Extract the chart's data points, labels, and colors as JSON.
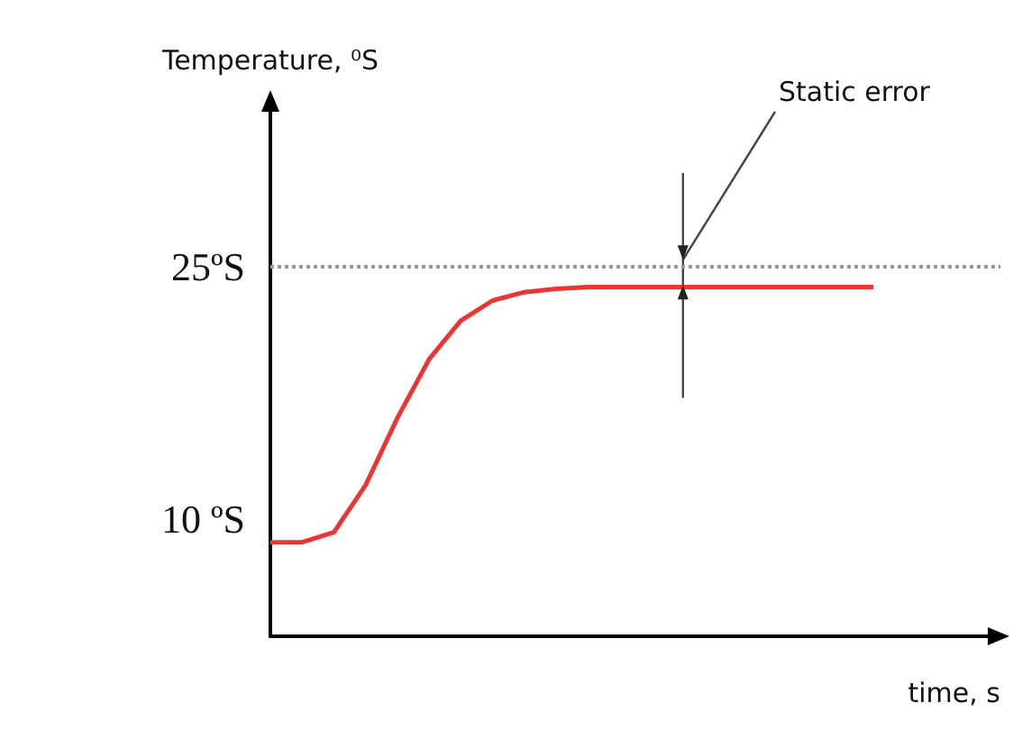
{
  "chart_data": {
    "type": "line",
    "ylabel": "Temperature, ⁰S",
    "xlabel": "time, s",
    "categories": [
      null,
      null,
      null,
      null,
      null,
      null,
      null,
      null,
      null,
      null,
      null,
      null,
      null,
      null,
      null,
      null,
      null,
      null,
      null,
      null,
      null,
      null,
      null,
      null
    ],
    "series": [
      {
        "color": "#ee3333",
        "values": [
          8.6,
          8.6,
          9.2,
          12,
          16,
          19.5,
          21.8,
          23,
          23.5,
          23.7,
          23.8,
          23.8,
          23.8,
          23.8,
          23.8,
          23.8,
          23.8,
          23.8,
          23.8,
          23.8,
          null,
          null,
          null,
          null
        ],
        "errors": [
          null,
          null,
          null,
          null,
          null,
          null,
          null,
          null,
          null,
          null,
          null,
          null,
          null,
          [
            17.2,
            30.6
          ],
          null,
          null,
          null,
          null,
          null,
          null,
          null,
          null,
          null,
          null
        ]
      }
    ],
    "ylim": [
      3,
      35
    ],
    "yticks": [
      {
        "value": 25,
        "label": "25ºS"
      },
      {
        "value": 10,
        "label": "10 ºS"
      }
    ],
    "tick_labels": "y",
    "grid": false,
    "marker": "none",
    "line_style": "solid",
    "ref_lines": [
      {
        "axis": "y",
        "value": 25,
        "color": "#999999",
        "line_style": "dotted"
      }
    ],
    "annotations": [
      "Static error"
    ]
  }
}
